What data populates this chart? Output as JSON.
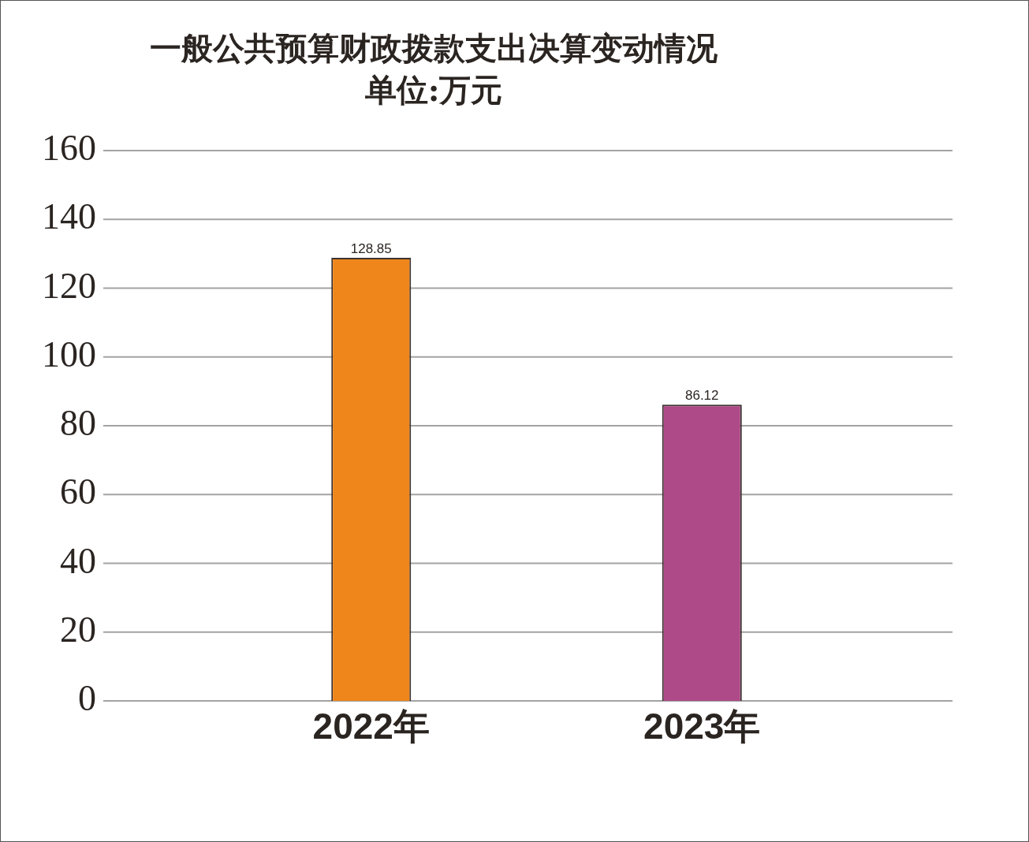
{
  "chart_data": {
    "type": "bar",
    "title": "一般公共预算财政拨款支出决算变动情况",
    "subtitle": "单位:万元",
    "categories": [
      "2022年",
      "2023年"
    ],
    "values": [
      128.85,
      86.12
    ],
    "colors": [
      "#ef861b",
      "#ad4a87"
    ],
    "ylim": [
      0,
      160
    ],
    "yticks": [
      0,
      20,
      40,
      60,
      80,
      100,
      120,
      140,
      160
    ],
    "grid": "y",
    "data_labels": true
  }
}
